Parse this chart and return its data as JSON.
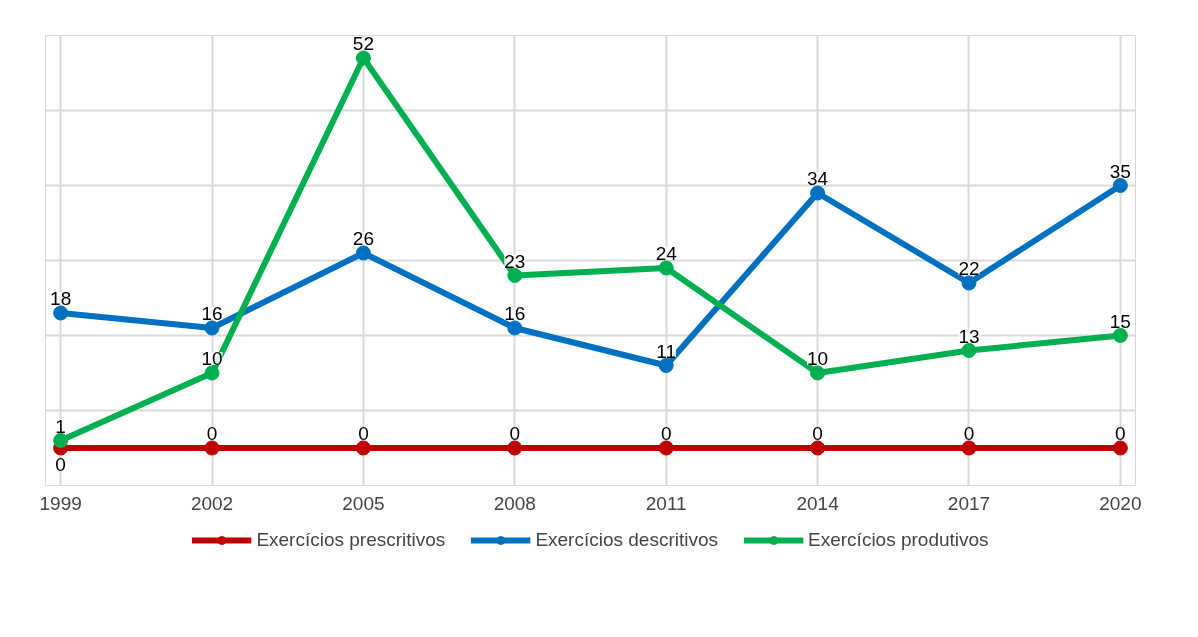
{
  "chart_data": {
    "type": "line",
    "categories": [
      "1999",
      "2002",
      "2005",
      "2008",
      "2011",
      "2014",
      "2017",
      "2020"
    ],
    "series": [
      {
        "name": "Exercícios prescritivos",
        "color": "#c00000",
        "values": [
          0,
          0,
          0,
          0,
          0,
          0,
          0,
          0
        ]
      },
      {
        "name": "Exercícios descritivos",
        "color": "#0070c0",
        "values": [
          18,
          16,
          26,
          16,
          11,
          34,
          22,
          35
        ]
      },
      {
        "name": "Exercícios produtivos",
        "color": "#00b050",
        "values": [
          1,
          10,
          52,
          23,
          24,
          10,
          13,
          15
        ]
      }
    ],
    "ylim": [
      -5,
      55
    ],
    "tick_labels": "x",
    "grid": true,
    "legend": "bottom",
    "marker": "circle",
    "line_style": "solid",
    "data_labels": true
  }
}
